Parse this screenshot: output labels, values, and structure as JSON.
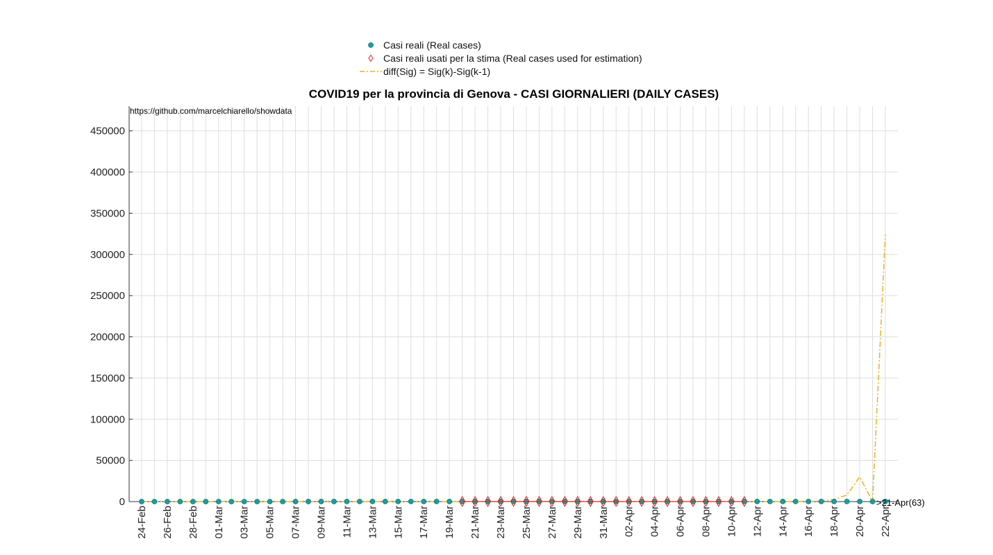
{
  "chart_data": {
    "type": "line",
    "title": "COVID19 per la provincia di Genova - CASI GIORNALIERI (DAILY CASES)",
    "source_note": "https://github.com/marcelchiarello/showdata",
    "xlabel": "",
    "ylabel": "",
    "ylim": [
      0,
      480000
    ],
    "yticks": [
      0,
      50000,
      100000,
      150000,
      200000,
      250000,
      300000,
      350000,
      400000,
      450000
    ],
    "x_tick_labels": [
      "24-Feb",
      "26-Feb",
      "28-Feb",
      "01-Mar",
      "03-Mar",
      "05-Mar",
      "07-Mar",
      "09-Mar",
      "11-Mar",
      "13-Mar",
      "15-Mar",
      "17-Mar",
      "19-Mar",
      "21-Mar",
      "23-Mar",
      "25-Mar",
      "27-Mar",
      "29-Mar",
      "31-Mar",
      "02-Apr",
      "04-Apr",
      "06-Apr",
      "08-Apr",
      "10-Apr",
      "12-Apr",
      "14-Apr",
      "16-Apr",
      "18-Apr",
      "20-Apr",
      "22-Apr"
    ],
    "x_days": 59,
    "grid": true,
    "legend_position": "top-center",
    "annotation": ">21-Apr(63)",
    "series": [
      {
        "name": "Casi reali (Real cases)",
        "color": "#1a9e9e",
        "marker": "circle",
        "values": [
          2,
          3,
          5,
          8,
          6,
          10,
          12,
          5,
          9,
          15,
          20,
          30,
          40,
          50,
          60,
          70,
          80,
          90,
          100,
          110,
          90,
          100,
          110,
          120,
          130,
          140,
          150,
          160,
          170,
          180,
          160,
          170,
          180,
          170,
          160,
          150,
          140,
          130,
          120,
          110,
          100,
          90,
          95,
          100,
          110,
          120,
          130,
          140,
          120,
          110,
          100,
          90,
          110,
          120,
          100,
          90,
          80,
          70,
          60
        ]
      },
      {
        "name": "Casi reali usati per la stima (Real cases used for estimation)",
        "color": "#e02020",
        "marker": "diamond",
        "start_index": 25,
        "values": [
          140,
          150,
          160,
          170,
          180,
          160,
          170,
          180,
          170,
          160,
          150,
          140,
          130,
          120,
          110,
          100,
          90,
          95,
          100,
          110,
          120,
          130,
          140
        ]
      },
      {
        "name": "diff(Sig) = Sig(k)-Sig(k-1)",
        "color": "#e8b020",
        "style": "dash-dot",
        "values": [
          0,
          0,
          0,
          0,
          0,
          0,
          0,
          0,
          0,
          0,
          0,
          0,
          0,
          0,
          0,
          0,
          0,
          0,
          0,
          0,
          0,
          0,
          0,
          0,
          0,
          0,
          0,
          0,
          0,
          0,
          0,
          0,
          0,
          0,
          0,
          0,
          0,
          0,
          0,
          0,
          0,
          0,
          0,
          0,
          0,
          0,
          0,
          0,
          0,
          0,
          0,
          0,
          0,
          800,
          2500,
          8000,
          30000,
          0,
          324000
        ]
      }
    ]
  }
}
